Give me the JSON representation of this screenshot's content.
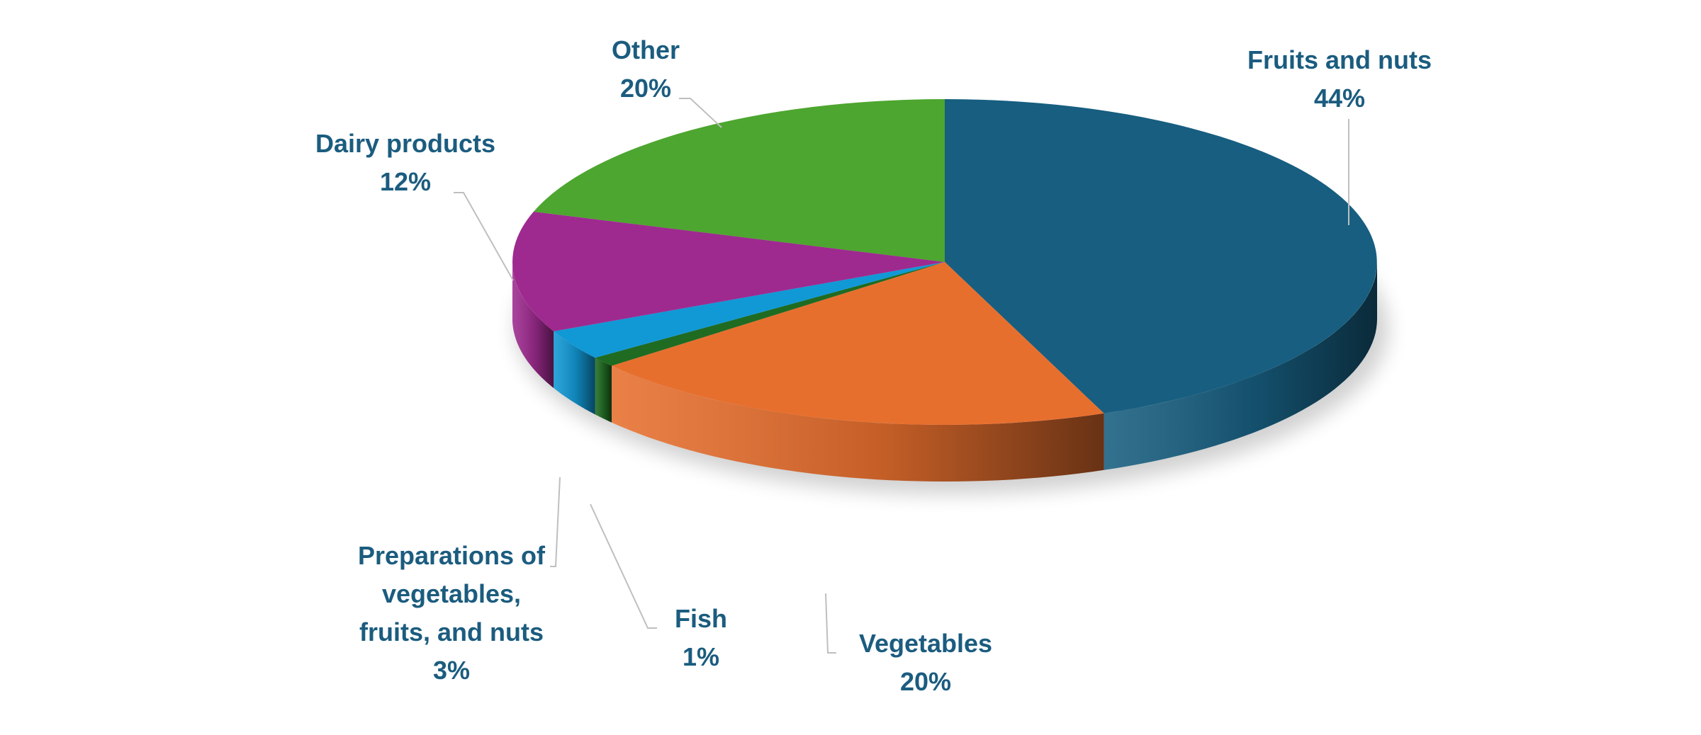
{
  "chart_data": {
    "type": "pie",
    "style": "3d",
    "title": "",
    "label_color": "#1b5c7f",
    "slices": [
      {
        "name": "Fruits and nuts",
        "value": 44,
        "display": "44%",
        "color": "#175e80"
      },
      {
        "name": "Vegetables",
        "value": 20,
        "display": "20%",
        "color": "#e76f2e"
      },
      {
        "name": "Fish",
        "value": 1,
        "display": "1%",
        "color": "#1f6b22"
      },
      {
        "name": "Preparations of vegetables, fruits, and nuts",
        "display_lines": [
          "Preparations of",
          "vegetables,",
          "fruits, and nuts"
        ],
        "value": 3,
        "display": "3%",
        "color": "#1199d6"
      },
      {
        "name": "Dairy products",
        "value": 12,
        "display": "12%",
        "color": "#9e2a8f"
      },
      {
        "name": "Other",
        "value": 20,
        "display": "20%",
        "color": "#4da62f"
      }
    ]
  }
}
